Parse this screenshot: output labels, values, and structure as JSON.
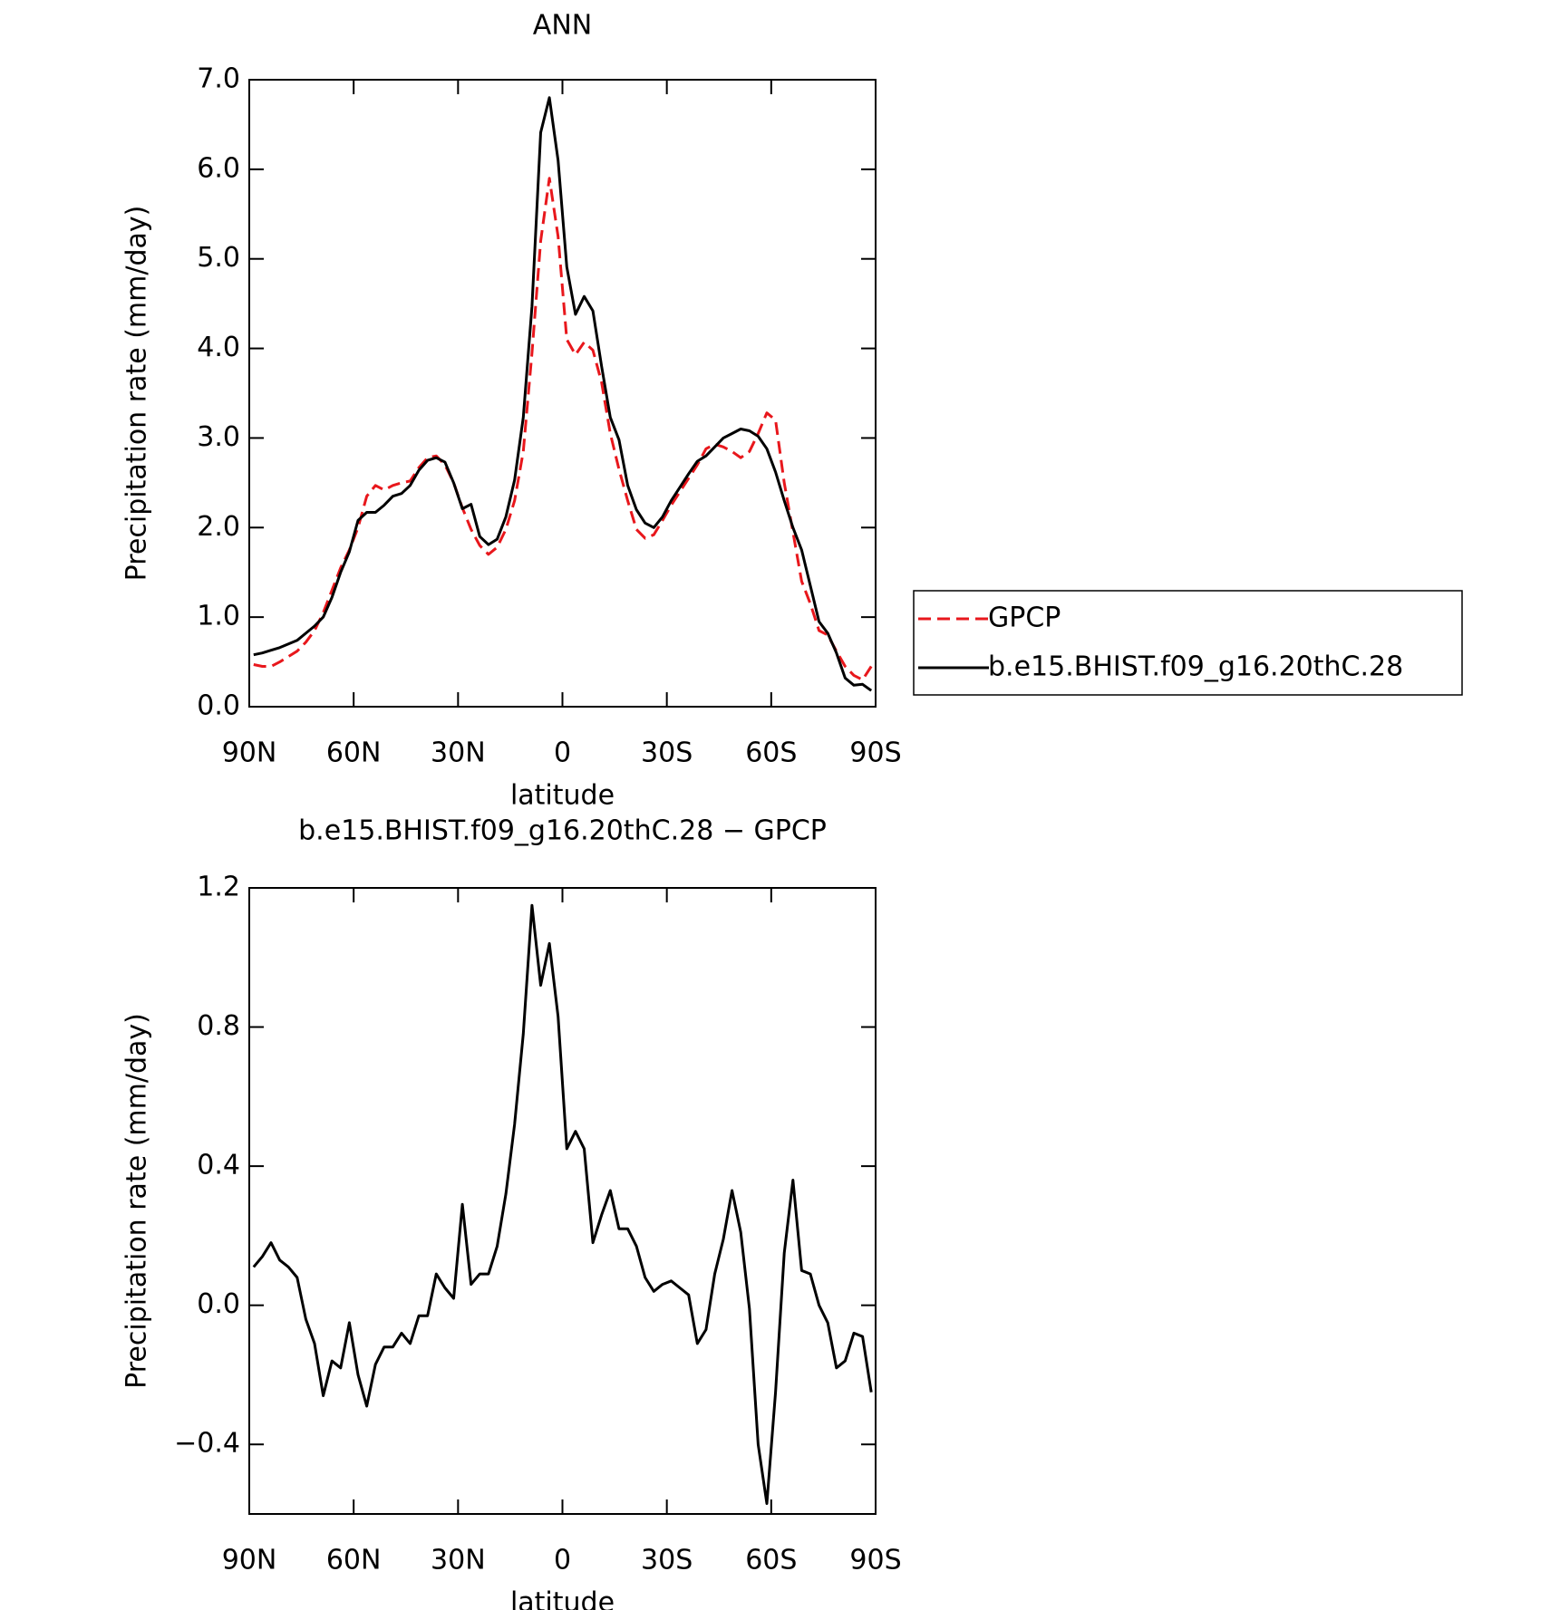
{
  "chart_data": [
    {
      "type": "line",
      "title": "ANN",
      "x_label": "latitude",
      "y_label": "Precipitation rate (mm/day)",
      "x": [
        88.75,
        86.25,
        83.75,
        81.25,
        78.75,
        76.25,
        73.75,
        71.25,
        68.75,
        66.25,
        63.75,
        61.25,
        58.75,
        56.25,
        53.75,
        51.25,
        48.75,
        46.25,
        43.75,
        41.25,
        38.75,
        36.25,
        33.75,
        31.25,
        28.75,
        26.25,
        23.75,
        21.25,
        18.75,
        16.25,
        13.75,
        11.25,
        8.75,
        6.25,
        3.75,
        1.25,
        -1.25,
        -3.75,
        -6.25,
        -8.75,
        -11.25,
        -13.75,
        -16.25,
        -18.75,
        -21.25,
        -23.75,
        -26.25,
        -28.75,
        -31.25,
        -33.75,
        -36.25,
        -38.75,
        -41.25,
        -43.75,
        -46.25,
        -48.75,
        -51.25,
        -53.75,
        -56.25,
        -58.75,
        -61.25,
        -63.75,
        -66.25,
        -68.75,
        -71.25,
        -73.75,
        -76.25,
        -78.75,
        -81.25,
        -83.75,
        -86.25,
        -88.75
      ],
      "series": [
        {
          "name": "GPCP",
          "color": "#e8171c",
          "dash": true,
          "values": [
            0.47,
            0.45,
            0.45,
            0.5,
            0.56,
            0.62,
            0.72,
            0.85,
            1.05,
            1.3,
            1.55,
            1.75,
            2.0,
            2.35,
            2.47,
            2.42,
            2.47,
            2.5,
            2.52,
            2.67,
            2.78,
            2.8,
            2.7,
            2.5,
            2.22,
            1.98,
            1.8,
            1.7,
            1.78,
            1.98,
            2.3,
            2.85,
            3.95,
            5.2,
            5.9,
            5.25,
            4.1,
            3.93,
            4.07,
            3.98,
            3.62,
            3.05,
            2.65,
            2.3,
            1.98,
            1.88,
            1.92,
            2.08,
            2.25,
            2.4,
            2.55,
            2.7,
            2.88,
            2.93,
            2.9,
            2.85,
            2.78,
            2.85,
            3.05,
            3.28,
            3.2,
            2.5,
            1.95,
            1.4,
            1.15,
            0.85,
            0.8,
            0.62,
            0.45,
            0.35,
            0.3,
            0.45
          ]
        },
        {
          "name": "b.e15.BHIST.f09_g16.20thC.28",
          "color": "#000000",
          "dash": false,
          "values": [
            0.58,
            0.6,
            0.63,
            0.66,
            0.7,
            0.74,
            0.82,
            0.9,
            1.0,
            1.22,
            1.5,
            1.73,
            2.08,
            2.17,
            2.17,
            2.25,
            2.35,
            2.38,
            2.47,
            2.64,
            2.75,
            2.78,
            2.73,
            2.5,
            2.21,
            2.26,
            1.9,
            1.81,
            1.87,
            2.12,
            2.53,
            3.23,
            4.47,
            6.41,
            6.8,
            6.1,
            4.91,
            4.38,
            4.58,
            4.42,
            3.8,
            3.23,
            2.98,
            2.47,
            2.2,
            2.05,
            2.0,
            2.12,
            2.3,
            2.45,
            2.6,
            2.74,
            2.8,
            2.9,
            3.0,
            3.05,
            3.1,
            3.08,
            3.02,
            2.88,
            2.62,
            2.3,
            2.0,
            1.75,
            1.35,
            0.95,
            0.82,
            0.6,
            0.32,
            0.24,
            0.25,
            0.18
          ]
        }
      ],
      "xlim": [
        90,
        -90
      ],
      "xticks": [
        {
          "value": 90,
          "label": "90N"
        },
        {
          "value": 60,
          "label": "60N"
        },
        {
          "value": 30,
          "label": "30N"
        },
        0,
        {
          "value": -30,
          "label": "30S"
        },
        {
          "value": -60,
          "label": "60S"
        },
        {
          "value": -90,
          "label": "90S"
        }
      ],
      "ylim": [
        0,
        7
      ],
      "yticks": [
        {
          "value": 0,
          "label": "0.0"
        },
        {
          "value": 1,
          "label": "1.0"
        },
        {
          "value": 2,
          "label": "2.0"
        },
        {
          "value": 3,
          "label": "3.0"
        },
        {
          "value": 4,
          "label": "4.0"
        },
        {
          "value": 5,
          "label": "5.0"
        },
        {
          "value": 6,
          "label": "6.0"
        },
        {
          "value": 7,
          "label": "7.0"
        }
      ],
      "legend": "outside-right"
    },
    {
      "type": "line",
      "title": "b.e15.BHIST.f09_g16.20thC.28 − GPCP",
      "x_label": "latitude",
      "y_label": "Precipitation rate (mm/day)",
      "x": [
        88.75,
        86.25,
        83.75,
        81.25,
        78.75,
        76.25,
        73.75,
        71.25,
        68.75,
        66.25,
        63.75,
        61.25,
        58.75,
        56.25,
        53.75,
        51.25,
        48.75,
        46.25,
        43.75,
        41.25,
        38.75,
        36.25,
        33.75,
        31.25,
        28.75,
        26.25,
        23.75,
        21.25,
        18.75,
        16.25,
        13.75,
        11.25,
        8.75,
        6.25,
        3.75,
        1.25,
        -1.25,
        -3.75,
        -6.25,
        -8.75,
        -11.25,
        -13.75,
        -16.25,
        -18.75,
        -21.25,
        -23.75,
        -26.25,
        -28.75,
        -31.25,
        -33.75,
        -36.25,
        -38.75,
        -41.25,
        -43.75,
        -46.25,
        -48.75,
        -51.25,
        -53.75,
        -56.25,
        -58.75,
        -61.25,
        -63.75,
        -66.25,
        -68.75,
        -71.25,
        -73.75,
        -76.25,
        -78.75,
        -81.25,
        -83.75,
        -86.25,
        -88.75
      ],
      "series": [
        {
          "color": "#000000",
          "dash": false,
          "values": [
            0.11,
            0.14,
            0.18,
            0.13,
            0.11,
            0.08,
            -0.04,
            -0.11,
            -0.26,
            -0.16,
            -0.18,
            -0.05,
            -0.2,
            -0.29,
            -0.17,
            -0.12,
            -0.12,
            -0.08,
            -0.11,
            -0.03,
            -0.03,
            0.09,
            0.05,
            0.02,
            0.29,
            0.06,
            0.09,
            0.09,
            0.17,
            0.32,
            0.52,
            0.78,
            1.15,
            0.92,
            1.04,
            0.83,
            0.45,
            0.5,
            0.45,
            0.18,
            0.26,
            0.33,
            0.22,
            0.22,
            0.17,
            0.08,
            0.04,
            0.06,
            0.07,
            0.05,
            0.03,
            -0.11,
            -0.07,
            0.09,
            0.19,
            0.33,
            0.21,
            -0.01,
            -0.4,
            -0.57,
            -0.25,
            0.15,
            0.36,
            0.1,
            0.09,
            0.0,
            -0.05,
            -0.18,
            -0.16,
            -0.08,
            -0.09,
            -0.25
          ]
        }
      ],
      "xlim": [
        90,
        -90
      ],
      "xticks": [
        {
          "value": 90,
          "label": "90N"
        },
        {
          "value": 60,
          "label": "60N"
        },
        {
          "value": 30,
          "label": "30N"
        },
        0,
        {
          "value": -30,
          "label": "30S"
        },
        {
          "value": -60,
          "label": "60S"
        },
        {
          "value": -90,
          "label": "90S"
        }
      ],
      "ylim": [
        -0.6,
        1.2
      ],
      "yticks": [
        {
          "value": -0.4,
          "label": "−0.4"
        },
        {
          "value": 0,
          "label": "0.0"
        },
        0.4,
        0.8,
        1.2
      ]
    }
  ]
}
